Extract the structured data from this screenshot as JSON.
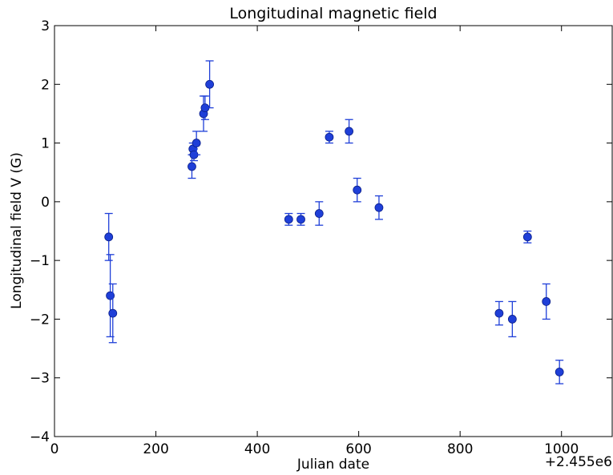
{
  "chart_data": {
    "type": "scatter",
    "title": "Longitudinal magnetic field",
    "xlabel": "Julian date",
    "ylabel": "Longitudinal field V (G)",
    "x_offset_label": "+2.455e6",
    "xlim": [
      0,
      1100
    ],
    "ylim": [
      -4,
      3
    ],
    "xticks": [
      0,
      200,
      400,
      600,
      800,
      1000
    ],
    "yticks": [
      -4,
      -3,
      -2,
      -1,
      0,
      1,
      2,
      3
    ],
    "grid": false,
    "error_bars": true,
    "marker_color": "#1f3fd8",
    "points": [
      {
        "x": 107,
        "y": -0.6,
        "err": 0.4
      },
      {
        "x": 110,
        "y": -1.6,
        "err": 0.7
      },
      {
        "x": 115,
        "y": -1.9,
        "err": 0.5
      },
      {
        "x": 271,
        "y": 0.6,
        "err": 0.2
      },
      {
        "x": 273,
        "y": 0.9,
        "err": 0.1
      },
      {
        "x": 275,
        "y": 0.8,
        "err": 0.1
      },
      {
        "x": 280,
        "y": 1.0,
        "err": 0.2
      },
      {
        "x": 294,
        "y": 1.5,
        "err": 0.3
      },
      {
        "x": 297,
        "y": 1.6,
        "err": 0.2
      },
      {
        "x": 306,
        "y": 2.0,
        "err": 0.4
      },
      {
        "x": 462,
        "y": -0.3,
        "err": 0.1
      },
      {
        "x": 486,
        "y": -0.3,
        "err": 0.1
      },
      {
        "x": 522,
        "y": -0.2,
        "err": 0.2
      },
      {
        "x": 542,
        "y": 1.1,
        "err": 0.1
      },
      {
        "x": 581,
        "y": 1.2,
        "err": 0.2
      },
      {
        "x": 597,
        "y": 0.2,
        "err": 0.2
      },
      {
        "x": 640,
        "y": -0.1,
        "err": 0.2
      },
      {
        "x": 877,
        "y": -1.9,
        "err": 0.2
      },
      {
        "x": 903,
        "y": -2.0,
        "err": 0.3
      },
      {
        "x": 933,
        "y": -0.6,
        "err": 0.1
      },
      {
        "x": 970,
        "y": -1.7,
        "err": 0.3
      },
      {
        "x": 996,
        "y": -2.9,
        "err": 0.2
      }
    ]
  }
}
